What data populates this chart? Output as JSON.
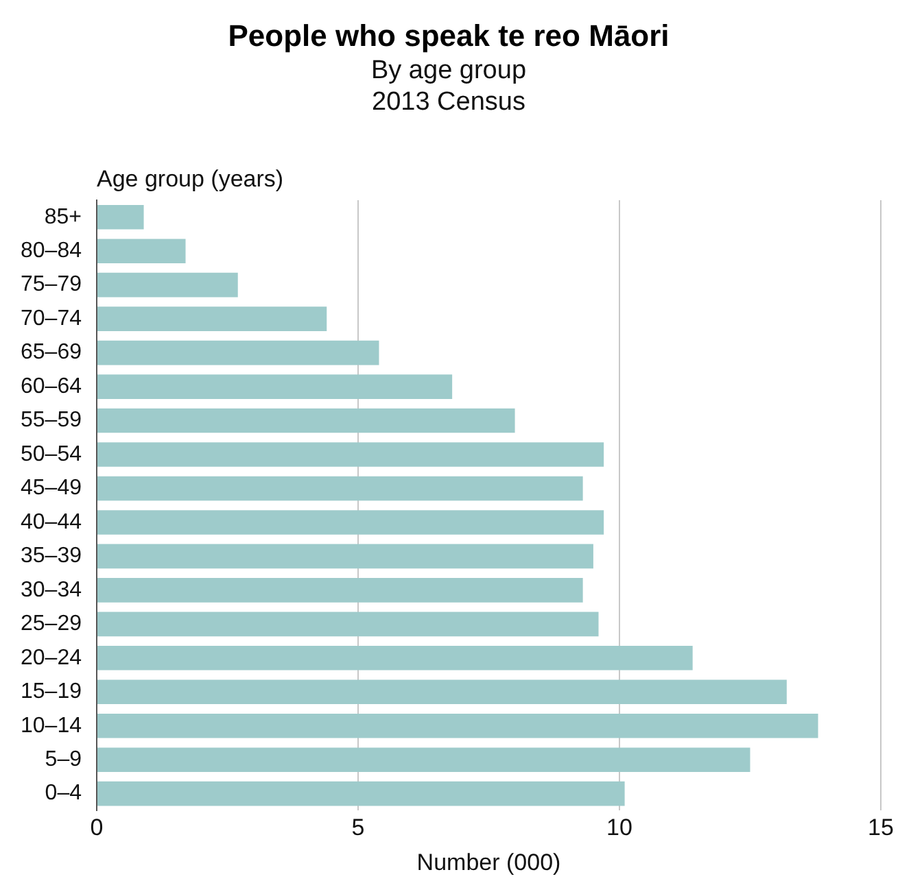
{
  "chart_data": {
    "type": "bar",
    "orientation": "horizontal",
    "title": "People who speak te reo Māori",
    "subtitle": "By age group\n2013 Census",
    "ylabel": "Age group (years)",
    "xlabel": "Number (000)",
    "categories": [
      "85+",
      "80–84",
      "75–79",
      "70–74",
      "65–69",
      "60–64",
      "55–59",
      "50–54",
      "45–49",
      "40–44",
      "35–39",
      "30–34",
      "25–29",
      "20–24",
      "15–19",
      "10–14",
      "5–9",
      "0–4"
    ],
    "values": [
      0.9,
      1.7,
      2.7,
      4.4,
      5.4,
      6.8,
      8.0,
      9.7,
      9.3,
      9.7,
      9.5,
      9.3,
      9.6,
      11.4,
      13.2,
      13.8,
      12.5,
      10.1
    ],
    "color": "#9ecbcb",
    "xlim": [
      0,
      15
    ],
    "xticks": [
      0,
      5,
      10,
      15
    ],
    "grid": "x"
  }
}
